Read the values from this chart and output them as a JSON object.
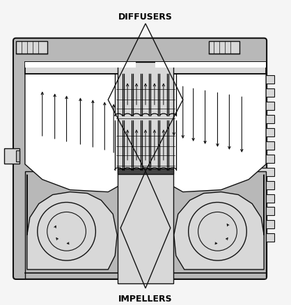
{
  "title_top": "DIFFUSERS",
  "title_bottom": "IMPELLERS",
  "bg_color": "#f5f5f5",
  "body_color": "#b8b8b8",
  "light_color": "#d8d8d8",
  "white_color": "#ffffff",
  "dark_color": "#444444",
  "line_color": "#111111",
  "fig_width": 4.18,
  "fig_height": 4.39,
  "dpi": 100
}
